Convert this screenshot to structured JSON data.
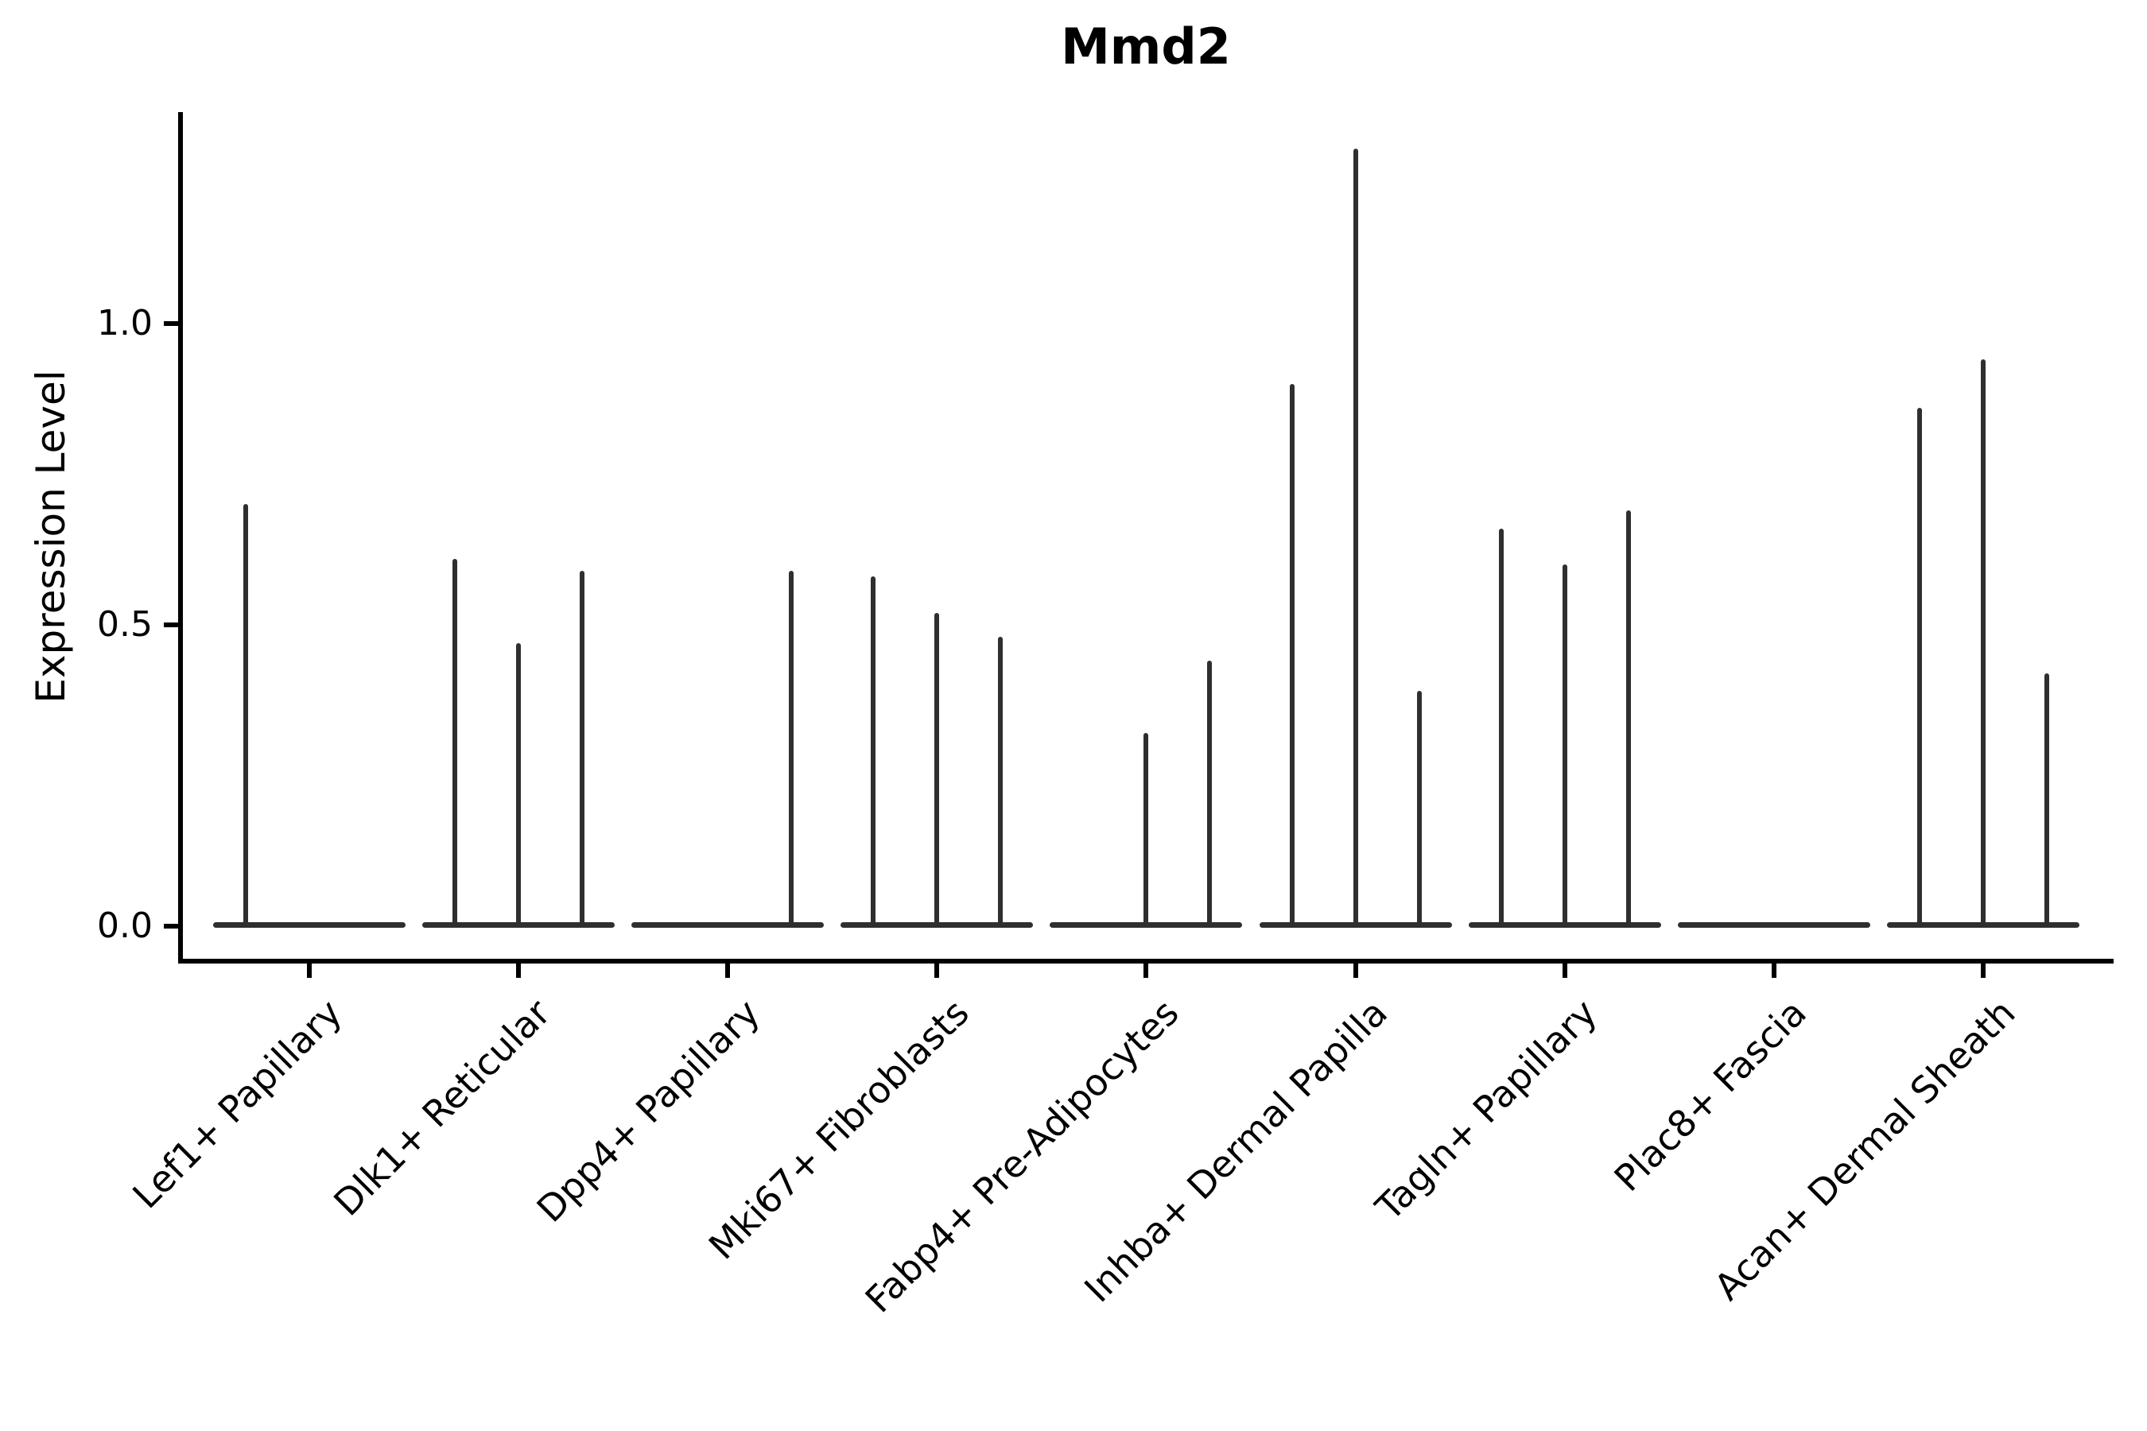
{
  "chart_data": {
    "type": "violin",
    "title": "Mmd2",
    "ylabel": "Expression Level",
    "xlabel": "",
    "yticks": [
      0.0,
      0.5,
      1.0
    ],
    "ytick_labels": [
      "0.0",
      "0.5",
      "1.0"
    ],
    "ylim": [
      -0.06,
      1.35
    ],
    "grid": false,
    "legend": "none",
    "groups_per_category": 3,
    "note": "Needle-thin violins: bulk of expression values at 0 (flat baseline per category); thin spikes mark sub-violin maxima",
    "categories": [
      "Lef1+ Papillary",
      "Dlk1+ Reticular",
      "Dpp4+ Papillary",
      "Mki67+ Fibroblasts",
      "Fabp4+ Pre-Adipocytes",
      "Inhba+ Dermal Papilla",
      "Tagln+ Papillary",
      "Plac8+ Fascia",
      "Acan+ Dermal Sheath"
    ],
    "violins": [
      {
        "category": "Lef1+ Papillary",
        "spikes": [
          {
            "slot": 1,
            "max": 0.7
          }
        ]
      },
      {
        "category": "Dlk1+ Reticular",
        "spikes": [
          {
            "slot": 1,
            "max": 0.61
          },
          {
            "slot": 2,
            "max": 0.47
          },
          {
            "slot": 3,
            "max": 0.59
          }
        ]
      },
      {
        "category": "Dpp4+ Papillary",
        "spikes": [
          {
            "slot": 3,
            "max": 0.59
          }
        ]
      },
      {
        "category": "Mki67+ Fibroblasts",
        "spikes": [
          {
            "slot": 1,
            "max": 0.58
          },
          {
            "slot": 2,
            "max": 0.52
          },
          {
            "slot": 3,
            "max": 0.48
          }
        ]
      },
      {
        "category": "Fabp4+ Pre-Adipocytes",
        "spikes": [
          {
            "slot": 2,
            "max": 0.32
          },
          {
            "slot": 3,
            "max": 0.44
          }
        ]
      },
      {
        "category": "Inhba+ Dermal Papilla",
        "spikes": [
          {
            "slot": 1,
            "max": 0.9
          },
          {
            "slot": 2,
            "max": 1.29
          },
          {
            "slot": 3,
            "max": 0.39
          }
        ]
      },
      {
        "category": "Tagln+ Papillary",
        "spikes": [
          {
            "slot": 1,
            "max": 0.66
          },
          {
            "slot": 2,
            "max": 0.6
          },
          {
            "slot": 3,
            "max": 0.69
          }
        ]
      },
      {
        "category": "Plac8+ Fascia",
        "spikes": []
      },
      {
        "category": "Acan+ Dermal Sheath",
        "spikes": [
          {
            "slot": 1,
            "max": 0.86
          },
          {
            "slot": 2,
            "max": 0.94
          },
          {
            "slot": 3,
            "max": 0.42
          }
        ]
      }
    ],
    "colors": {
      "violin": "#2f2f2f",
      "axis": "#000000",
      "background": "#ffffff"
    }
  }
}
